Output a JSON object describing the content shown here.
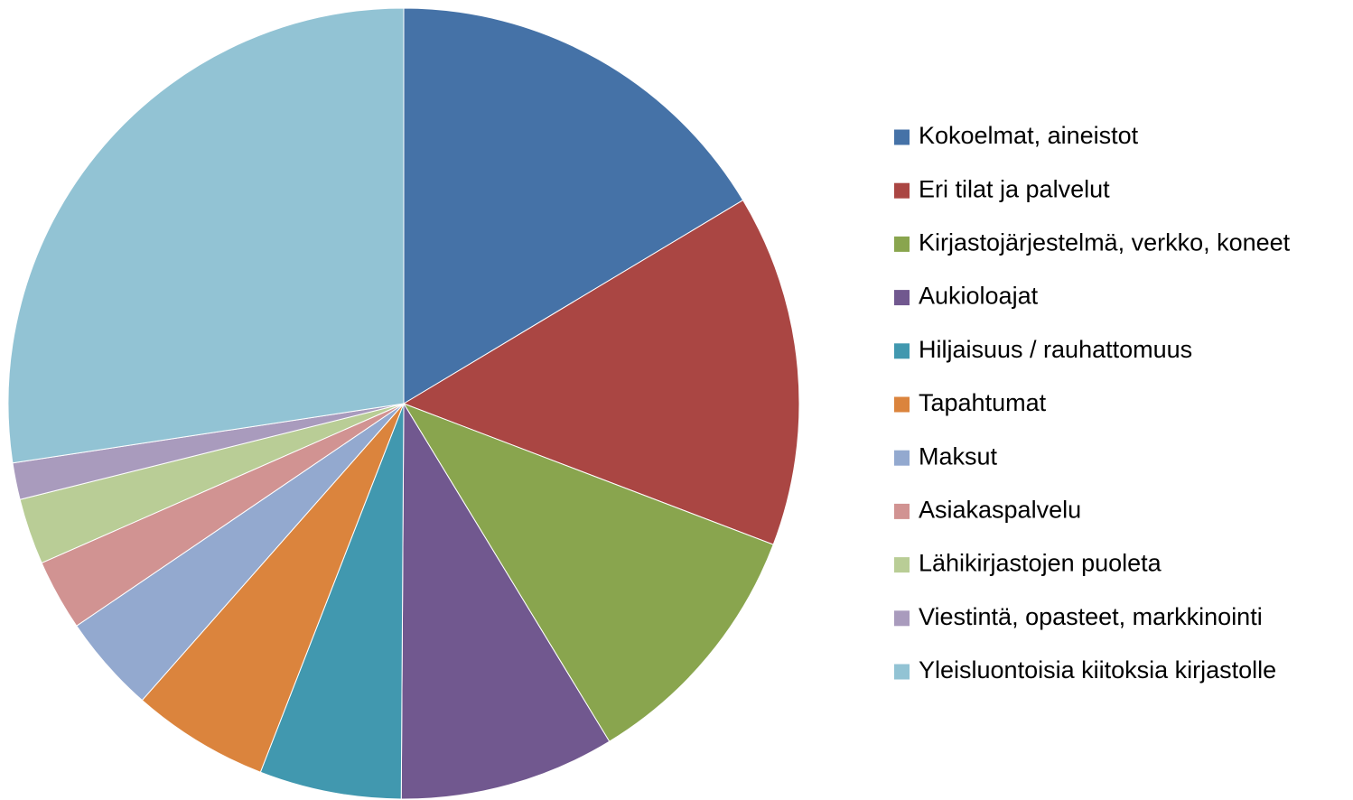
{
  "chart_data": {
    "type": "pie",
    "categories": [
      "Kokoelmat, aineistot",
      "Eri tilat ja palvelut",
      "Kirjastojärjestelmä, verkko, koneet",
      "Aukioloajat",
      "Hiljaisuus / rauhattomuus",
      "Tapahtumat",
      "Maksut",
      "Asiakaspalvelu",
      "Lähikirjastojen puoleta",
      "Viestintä, opasteet, markkinointi",
      "Yleisluontoisia kiitoksia kirjastolle"
    ],
    "values": [
      16.4,
      14.4,
      10.5,
      8.8,
      5.8,
      5.6,
      4.0,
      2.9,
      2.7,
      1.5,
      27.4
    ],
    "colors": [
      "#4572a7",
      "#aa4643",
      "#89a54e",
      "#71588f",
      "#4198af",
      "#db843d",
      "#93a9cf",
      "#d19392",
      "#b9cd96",
      "#a99bbd",
      "#92c3d4"
    ],
    "legend": "right"
  }
}
